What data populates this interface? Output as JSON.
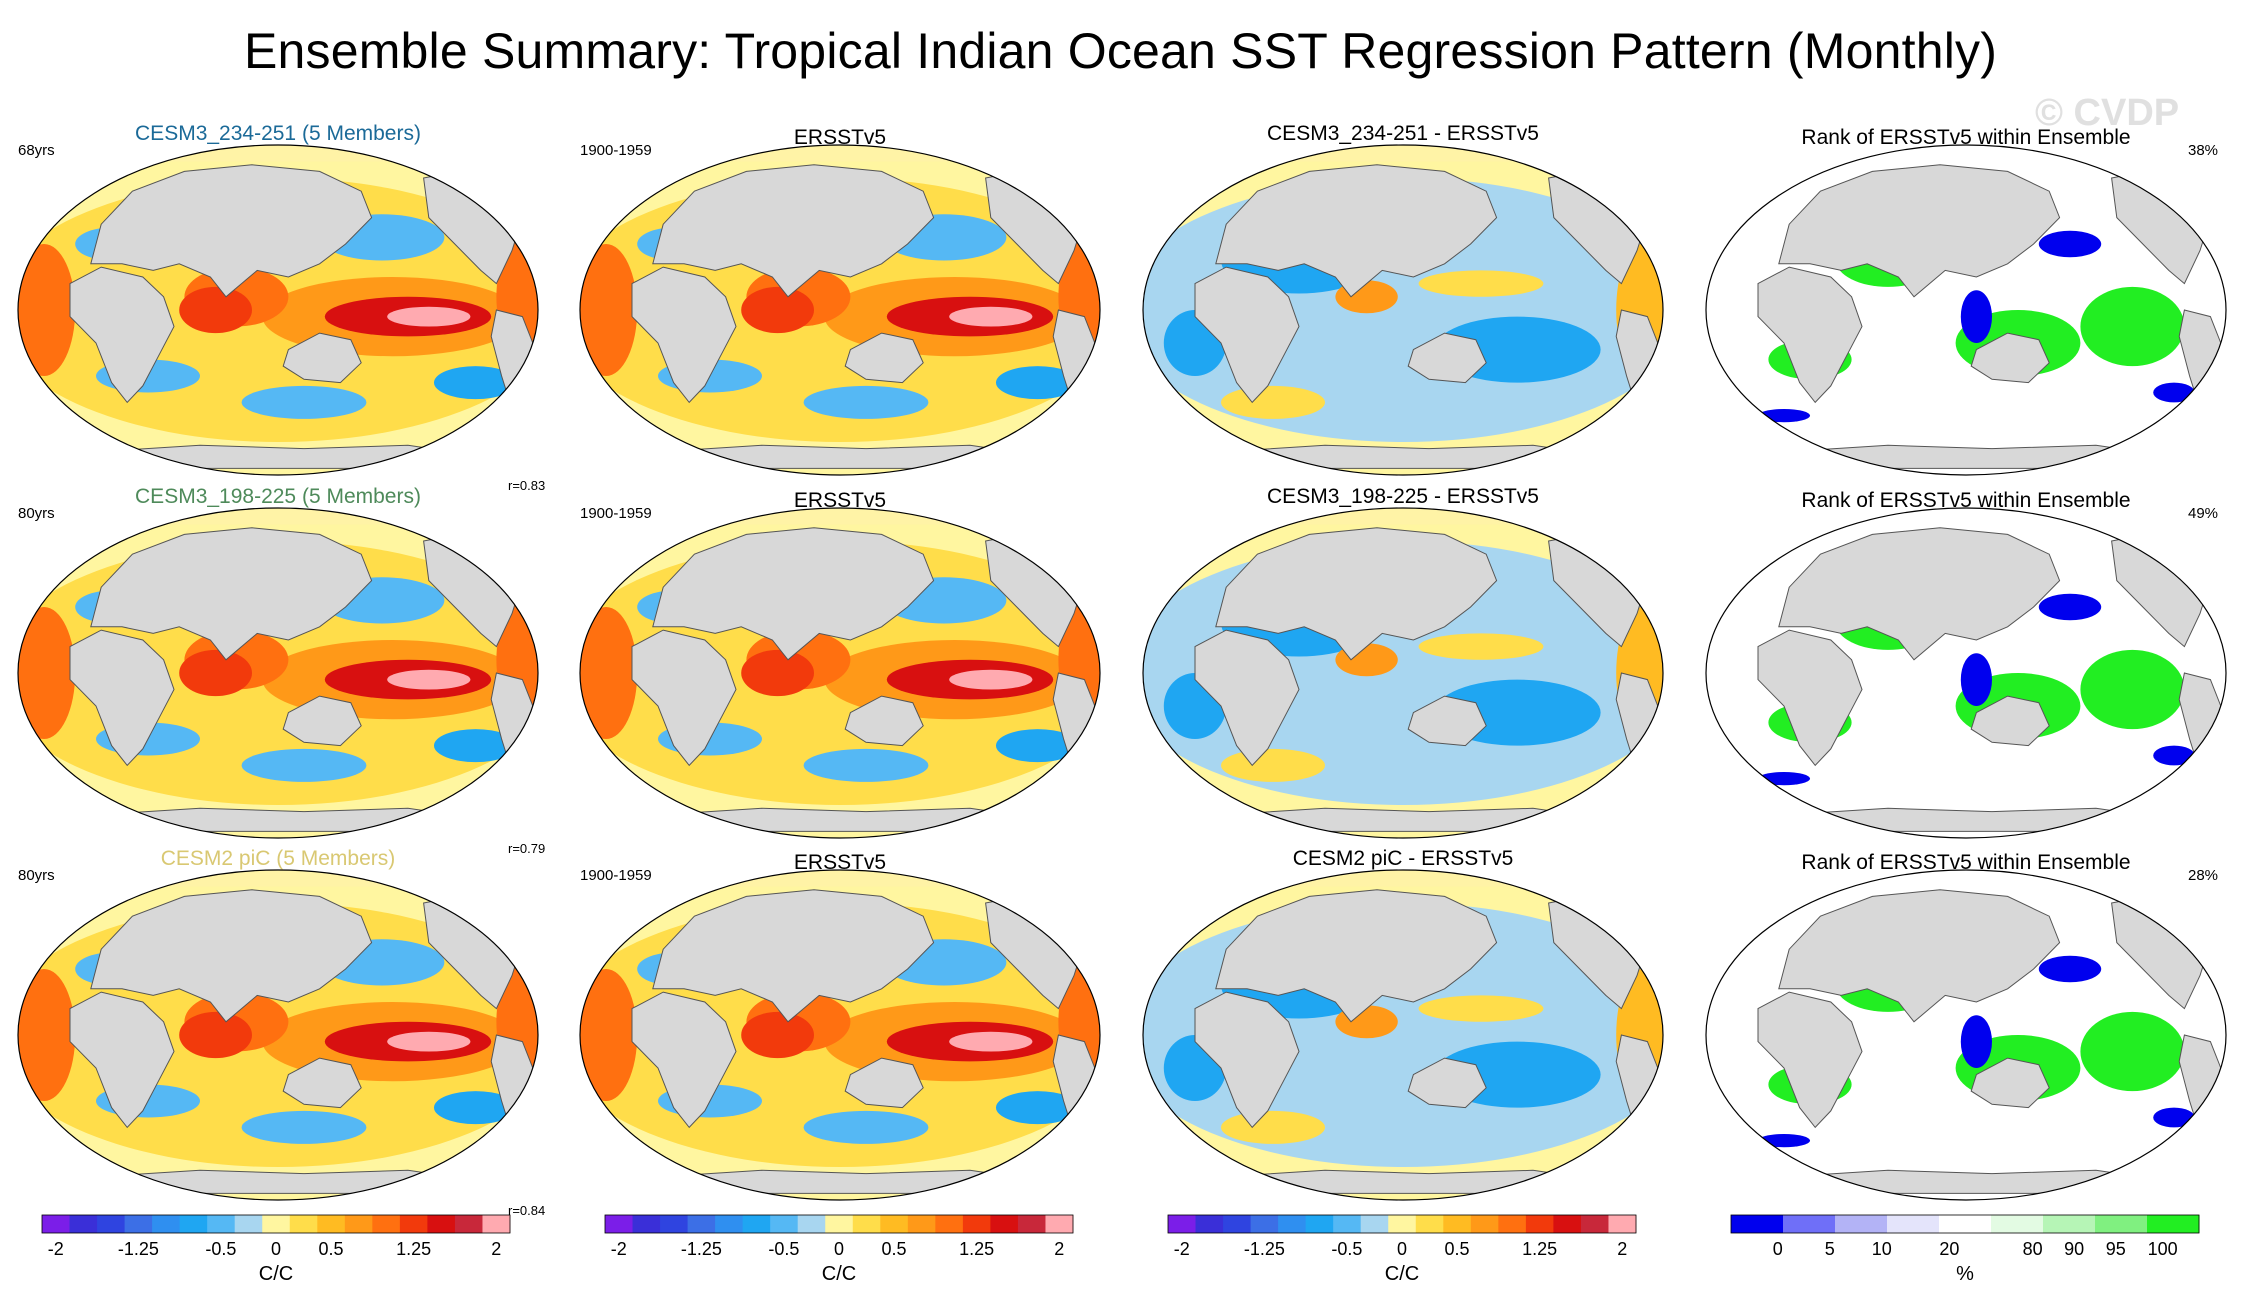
{
  "title": "Ensemble Summary: Tropical Indian Ocean SST Regression Pattern (Monthly)",
  "watermark": "© CVDP",
  "colors": {
    "continent": "#d8d8d8",
    "arctic": "#fff3a6",
    "rank_low": "#0000ee",
    "rank_high": "#22ee22"
  },
  "rows": [
    {
      "model_title": "CESM3_234-251 (5 Members)",
      "model_title_color": "#1b6a98",
      "years": "68yrs",
      "corr": "r=0.83",
      "obs_title": "ERSSTv5",
      "obs_period": "1900-1959",
      "diff_title": "CESM3_234-251 - ERSSTv5",
      "rank_title": "Rank of ERSSTv5 within Ensemble",
      "rank_pct": "38%"
    },
    {
      "model_title": "CESM3_198-225 (5 Members)",
      "model_title_color": "#4e8a5a",
      "years": "80yrs",
      "corr": "r=0.79",
      "obs_title": "ERSSTv5",
      "obs_period": "1900-1959",
      "diff_title": "CESM3_198-225 - ERSSTv5",
      "rank_title": "Rank of ERSSTv5 within Ensemble",
      "rank_pct": "49%"
    },
    {
      "model_title": "CESM2 piC (5 Members)",
      "model_title_color": "#d9c872",
      "years": "80yrs",
      "corr": "r=0.84",
      "obs_title": "ERSSTv5",
      "obs_period": "1900-1959",
      "diff_title": "CESM2 piC - ERSSTv5",
      "rank_title": "Rank of ERSSTv5 within Ensemble",
      "rank_pct": "28%"
    }
  ],
  "chart_data": {
    "type": "heatmap",
    "projection": "Robinson (global, Pacific-centered)",
    "sst_colorbar": {
      "units": "C/C",
      "levels": [
        -2,
        -1.75,
        -1.5,
        -1.25,
        -1,
        -0.75,
        -0.5,
        -0.25,
        0,
        0.25,
        0.5,
        0.75,
        1,
        1.25,
        1.5,
        1.75,
        2
      ],
      "tick_labels": [
        "-2",
        "-1.25",
        "-0.5",
        "0",
        "0.5",
        "1.25",
        "2"
      ],
      "colors": [
        "#7b1ee8",
        "#3a2fd8",
        "#2f44e0",
        "#3c6fe6",
        "#2f8ff0",
        "#1fa6f2",
        "#55b8f4",
        "#a8d6f0",
        "#fff6a0",
        "#ffdd4a",
        "#ffbb22",
        "#ff9918",
        "#ff7010",
        "#f23a0c",
        "#d81010",
        "#c8283a",
        "#ffaab0"
      ]
    },
    "rank_colorbar": {
      "units": "%",
      "levels": [
        0,
        5,
        10,
        20,
        80,
        90,
        95,
        100
      ],
      "tick_labels": [
        "0",
        "5",
        "10",
        "20",
        "80",
        "90",
        "95",
        "100"
      ],
      "colors": [
        "#0000ee",
        "#6f6ff8",
        "#b3b3f6",
        "#e4e4fb",
        "#ffffff",
        "#e3fbe3",
        "#b6f5b6",
        "#80f080",
        "#22ee22"
      ]
    }
  }
}
